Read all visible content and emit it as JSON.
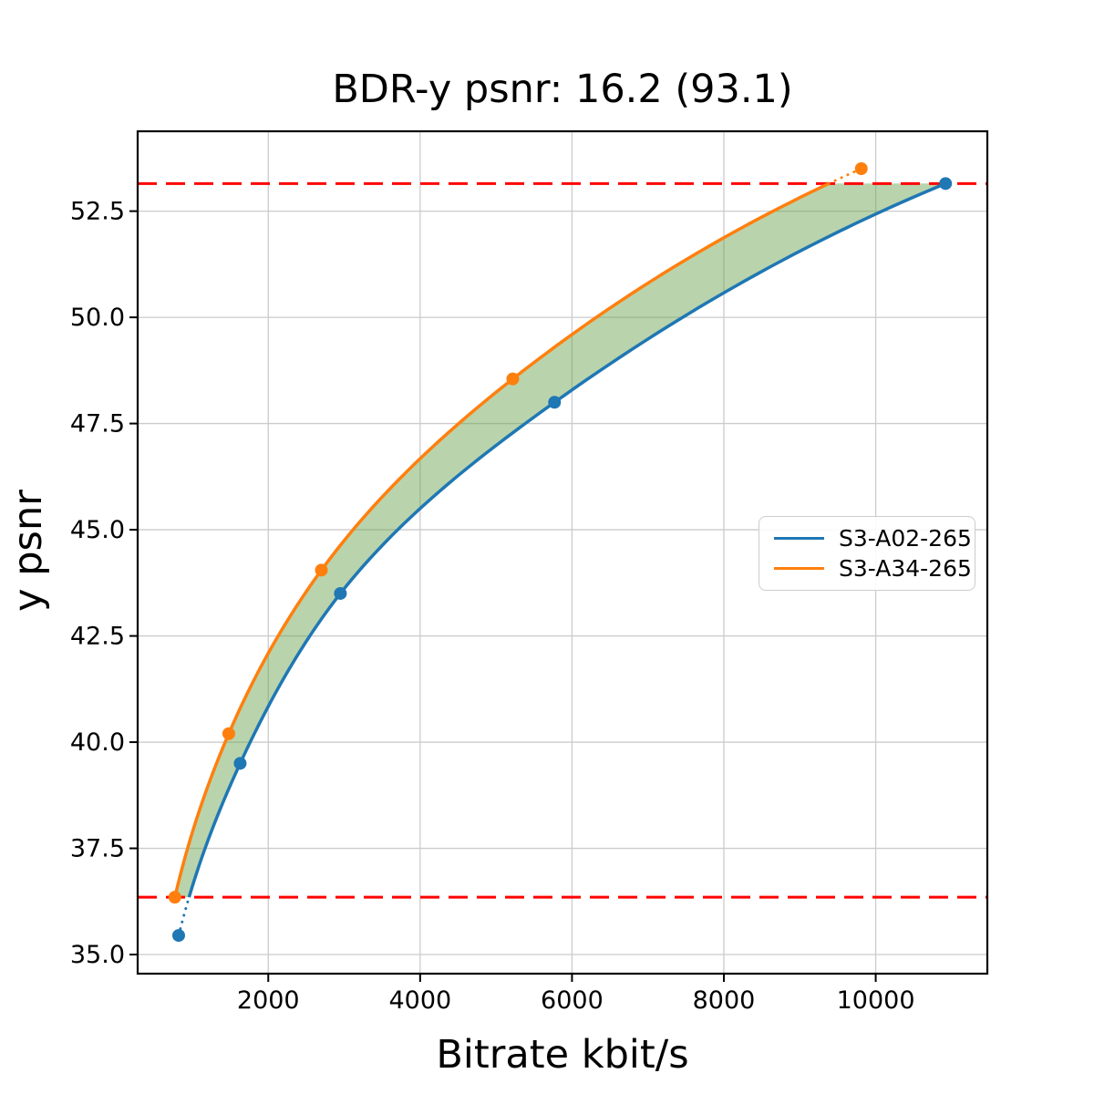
{
  "chart_data": {
    "type": "line",
    "title": "BDR-y psnr: 16.2 (93.1)",
    "xlabel": "Bitrate kbit/s",
    "ylabel": "y psnr",
    "xlim": [
      280,
      11470
    ],
    "ylim": [
      34.55,
      54.38
    ],
    "xticks": [
      2000,
      4000,
      6000,
      8000,
      10000
    ],
    "xtick_labels": [
      "2000",
      "4000",
      "6000",
      "8000",
      "10000"
    ],
    "yticks": [
      35.0,
      37.5,
      40.0,
      42.5,
      45.0,
      47.5,
      50.0,
      52.5
    ],
    "ytick_labels": [
      "35.0",
      "37.5",
      "40.0",
      "42.5",
      "45.0",
      "47.5",
      "50.0",
      "52.5"
    ],
    "grid": true,
    "interpolation": "pchip-log-rate",
    "series": [
      {
        "name": "S3-A02-265",
        "color": "#1f77b4",
        "points": [
          [
            820,
            35.45
          ],
          [
            1630,
            39.5
          ],
          [
            2950,
            43.5
          ],
          [
            5770,
            48.0
          ],
          [
            10920,
            53.15
          ]
        ]
      },
      {
        "name": "S3-A34-265",
        "color": "#ff7f0e",
        "points": [
          [
            770,
            36.35
          ],
          [
            1480,
            40.2
          ],
          [
            2700,
            44.05
          ],
          [
            5220,
            48.55
          ],
          [
            9810,
            53.5
          ]
        ]
      }
    ],
    "bd_lines": {
      "color": "#ff0000",
      "style": "dashed",
      "lower_psnr": 36.35,
      "upper_psnr": 53.15
    },
    "shaded_region": {
      "fill_color": "#64a046",
      "opacity": 0.45,
      "between_series": [
        "S3-A34-265",
        "S3-A02-265"
      ],
      "psnr_range": [
        36.35,
        53.15
      ]
    },
    "colors": {
      "grid": "#cccccc",
      "spine": "#000000",
      "background": "#ffffff",
      "text": "#000000"
    },
    "legend": {
      "position": "center-right",
      "items": [
        {
          "label": "S3-A02-265",
          "color": "#1f77b4"
        },
        {
          "label": "S3-A34-265",
          "color": "#ff7f0e"
        }
      ]
    }
  }
}
